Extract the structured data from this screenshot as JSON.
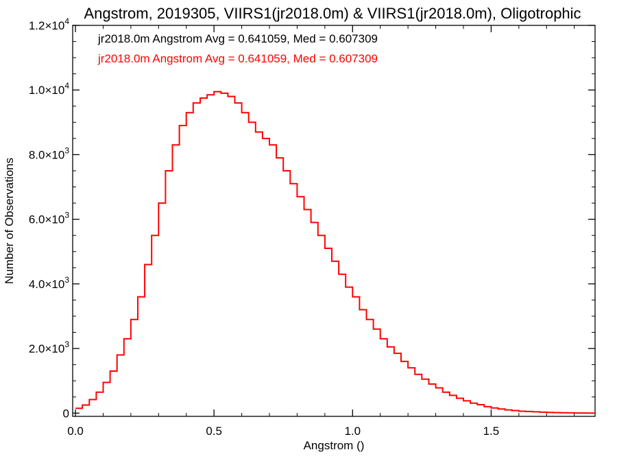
{
  "chart_data": {
    "type": "histogram",
    "title": "Angstrom, 2019305, VIIRS1(jr2018.0m) & VIIRS1(jr2018.0m), Oligotrophic",
    "xlabel": "Angstrom ()",
    "ylabel": "Number of Observations",
    "xlim": [
      -0.01,
      1.875
    ],
    "ylim": [
      -100,
      12000
    ],
    "x_ticks": [
      {
        "value": 0.0,
        "label": "0.0"
      },
      {
        "value": 0.5,
        "label": "0.5"
      },
      {
        "value": 1.0,
        "label": "1.0"
      },
      {
        "value": 1.5,
        "label": "1.5"
      }
    ],
    "y_ticks": [
      {
        "value": 0,
        "label": "0",
        "exp": ""
      },
      {
        "value": 2000,
        "label": "2.0×10",
        "exp": "3"
      },
      {
        "value": 4000,
        "label": "4.0×10",
        "exp": "3"
      },
      {
        "value": 6000,
        "label": "6.0×10",
        "exp": "3"
      },
      {
        "value": 8000,
        "label": "8.0×10",
        "exp": "3"
      },
      {
        "value": 10000,
        "label": "1.0×10",
        "exp": "4"
      },
      {
        "value": 12000,
        "label": "1.2×10",
        "exp": "4"
      }
    ],
    "annotations": [
      {
        "text": "jr2018.0m Angstrom Avg = 0.641059, Med = 0.607309",
        "color": "#000000"
      },
      {
        "text": "jr2018.0m Angstrom Avg = 0.641059, Med = 0.607309",
        "color": "#ff0000"
      }
    ],
    "series": [
      {
        "color": "#ff0000",
        "bin_start": 0.0,
        "bin_width": 0.025,
        "x": [
          0.0,
          0.025,
          0.05,
          0.075,
          0.1,
          0.125,
          0.15,
          0.175,
          0.2,
          0.225,
          0.25,
          0.275,
          0.3,
          0.325,
          0.35,
          0.375,
          0.4,
          0.425,
          0.45,
          0.475,
          0.5,
          0.525,
          0.55,
          0.575,
          0.6,
          0.625,
          0.65,
          0.675,
          0.7,
          0.725,
          0.75,
          0.775,
          0.8,
          0.825,
          0.85,
          0.875,
          0.9,
          0.925,
          0.95,
          0.975,
          1.0,
          1.025,
          1.05,
          1.075,
          1.1,
          1.125,
          1.15,
          1.175,
          1.2,
          1.225,
          1.25,
          1.275,
          1.3,
          1.325,
          1.35,
          1.375,
          1.4,
          1.425,
          1.45,
          1.475,
          1.5,
          1.525,
          1.55,
          1.575,
          1.6,
          1.625,
          1.65,
          1.675,
          1.7,
          1.725,
          1.75,
          1.775,
          1.8,
          1.825,
          1.85
        ],
        "y": [
          150,
          250,
          420,
          650,
          950,
          1300,
          1800,
          2300,
          2900,
          3600,
          4600,
          5500,
          6500,
          7500,
          8300,
          8900,
          9300,
          9600,
          9750,
          9850,
          9950,
          9900,
          9800,
          9600,
          9300,
          9000,
          8700,
          8500,
          8300,
          7900,
          7500,
          7100,
          6700,
          6300,
          5900,
          5500,
          5100,
          4700,
          4300,
          3900,
          3600,
          3200,
          2900,
          2600,
          2300,
          2050,
          1850,
          1600,
          1400,
          1200,
          1050,
          900,
          780,
          650,
          550,
          460,
          380,
          310,
          260,
          200,
          160,
          130,
          100,
          80,
          60,
          50,
          40,
          30,
          22,
          16,
          12,
          8,
          5,
          3,
          2
        ]
      }
    ],
    "grid": false,
    "legend": "top-left"
  }
}
